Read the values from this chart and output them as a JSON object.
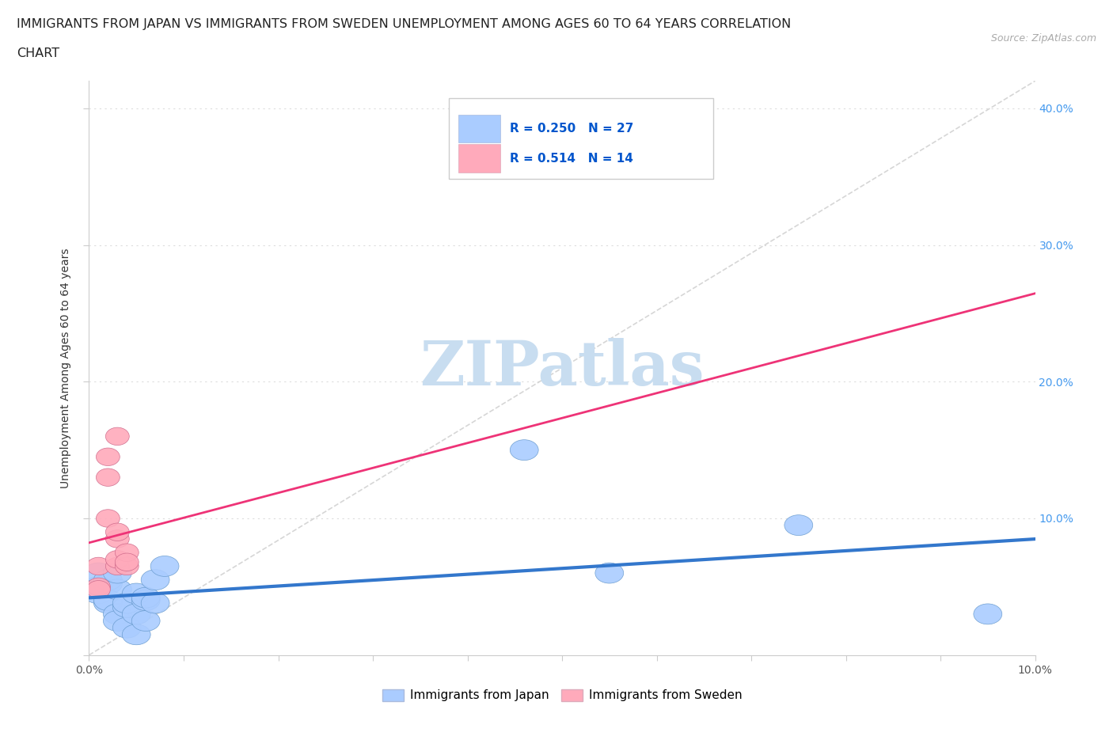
{
  "title_line1": "IMMIGRANTS FROM JAPAN VS IMMIGRANTS FROM SWEDEN UNEMPLOYMENT AMONG AGES 60 TO 64 YEARS CORRELATION",
  "title_line2": "CHART",
  "source": "Source: ZipAtlas.com",
  "ylabel": "Unemployment Among Ages 60 to 64 years",
  "xlim": [
    0.0,
    0.1
  ],
  "ylim": [
    0.0,
    0.42
  ],
  "xtick_positions": [
    0.0,
    0.01,
    0.02,
    0.03,
    0.04,
    0.05,
    0.06,
    0.07,
    0.08,
    0.09,
    0.1
  ],
  "xtick_labels": [
    "0.0%",
    "",
    "",
    "",
    "",
    "",
    "",
    "",
    "",
    "",
    "10.0%"
  ],
  "ytick_positions": [
    0.0,
    0.1,
    0.2,
    0.3,
    0.4
  ],
  "right_ytick_labels": [
    "",
    "10.0%",
    "20.0%",
    "30.0%",
    "40.0%"
  ],
  "japan_color": "#aaccff",
  "sweden_color": "#ffaabb",
  "japan_line_color": "#3377cc",
  "sweden_line_color": "#ee3377",
  "diagonal_color": "#cccccc",
  "R_japan": 0.25,
  "N_japan": 27,
  "R_sweden": 0.514,
  "N_sweden": 14,
  "japan_x": [
    0.001,
    0.001,
    0.001,
    0.002,
    0.002,
    0.002,
    0.002,
    0.003,
    0.003,
    0.003,
    0.003,
    0.004,
    0.004,
    0.004,
    0.005,
    0.005,
    0.005,
    0.006,
    0.006,
    0.006,
    0.007,
    0.007,
    0.008,
    0.046,
    0.055,
    0.075,
    0.095
  ],
  "japan_y": [
    0.05,
    0.045,
    0.06,
    0.052,
    0.038,
    0.04,
    0.055,
    0.048,
    0.03,
    0.025,
    0.06,
    0.035,
    0.038,
    0.02,
    0.045,
    0.03,
    0.015,
    0.04,
    0.025,
    0.042,
    0.055,
    0.038,
    0.065,
    0.15,
    0.06,
    0.095,
    0.03
  ],
  "sweden_x": [
    0.001,
    0.001,
    0.001,
    0.002,
    0.002,
    0.002,
    0.003,
    0.003,
    0.003,
    0.003,
    0.003,
    0.004,
    0.004,
    0.004
  ],
  "sweden_y": [
    0.05,
    0.065,
    0.048,
    0.145,
    0.1,
    0.13,
    0.065,
    0.07,
    0.085,
    0.09,
    0.16,
    0.065,
    0.075,
    0.068
  ],
  "background_color": "#ffffff",
  "grid_color": "#dddddd",
  "watermark": "ZIPatlas",
  "watermark_color": "#c8ddf0",
  "legend_text_color": "#0055cc",
  "legend_border_color": "#cccccc"
}
